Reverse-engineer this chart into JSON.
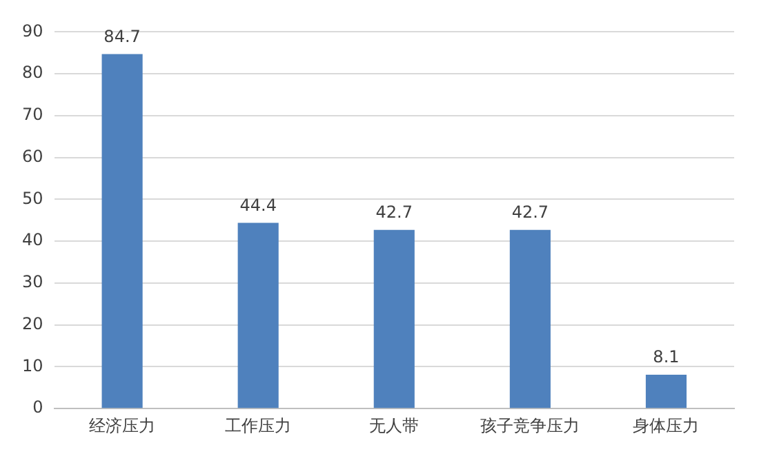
{
  "chart_data": {
    "type": "bar",
    "categories": [
      "经济压力",
      "工作压力",
      "无人带",
      "孩子竞争压力",
      "身体压力"
    ],
    "values": [
      84.7,
      44.4,
      42.7,
      42.7,
      8.1
    ],
    "color": "#4f81bd",
    "ylim": [
      0,
      90
    ],
    "yticks": [
      0,
      10,
      20,
      30,
      40,
      50,
      60,
      70,
      80,
      90
    ],
    "grid": "y",
    "data_labels": true
  }
}
